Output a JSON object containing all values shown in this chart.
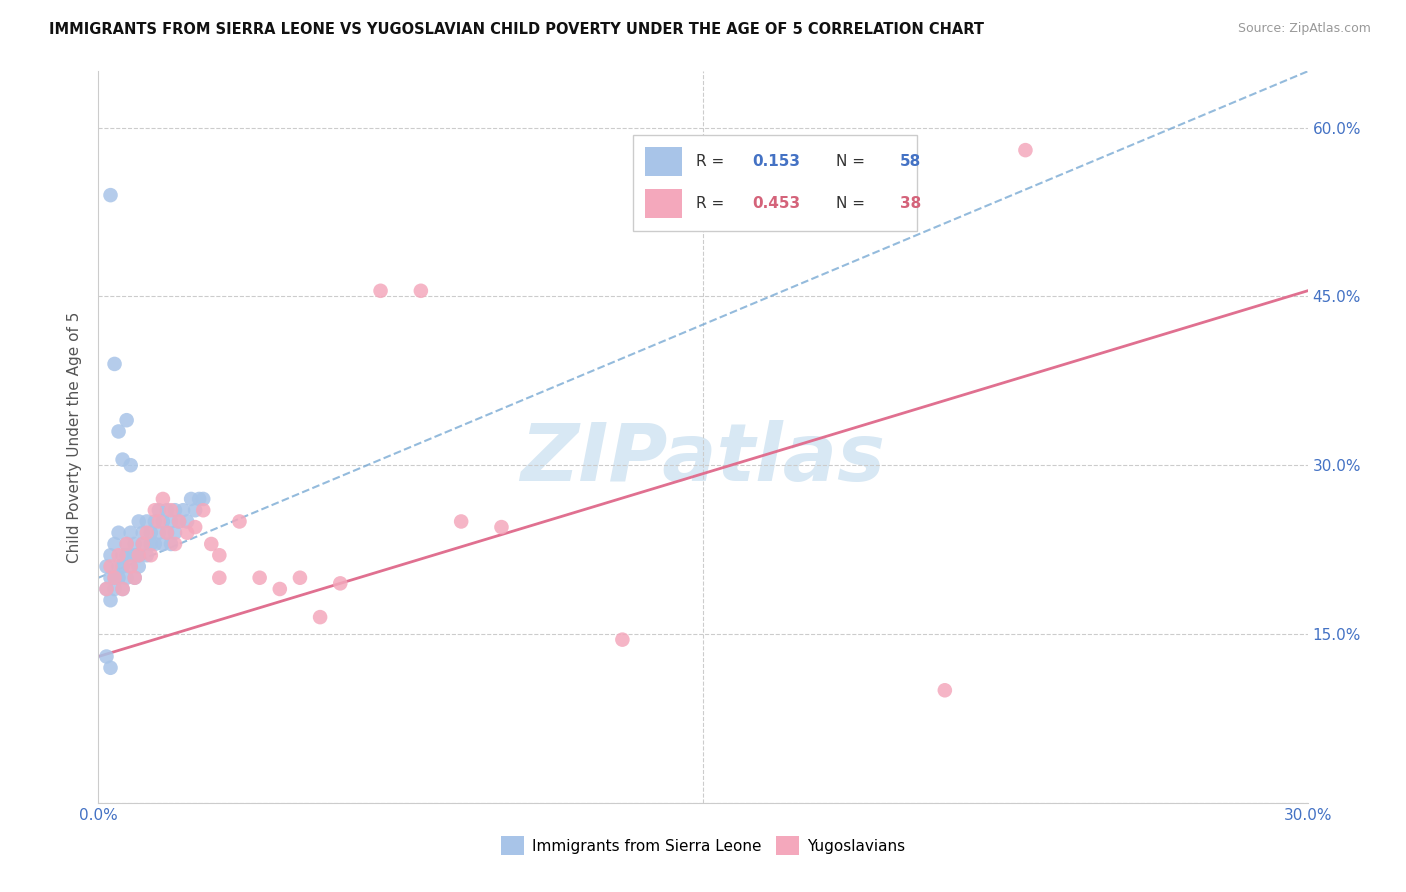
{
  "title": "IMMIGRANTS FROM SIERRA LEONE VS YUGOSLAVIAN CHILD POVERTY UNDER THE AGE OF 5 CORRELATION CHART",
  "source": "Source: ZipAtlas.com",
  "ylabel": "Child Poverty Under the Age of 5",
  "xmin": 0.0,
  "xmax": 0.3,
  "ymin": 0.0,
  "ymax": 0.65,
  "yticks": [
    0.0,
    0.15,
    0.3,
    0.45,
    0.6
  ],
  "ytick_labels": [
    "",
    "15.0%",
    "30.0%",
    "45.0%",
    "60.0%"
  ],
  "xtick_vals": [
    0.0,
    0.3
  ],
  "xtick_labels": [
    "0.0%",
    "30.0%"
  ],
  "legend1_label": "Immigrants from Sierra Leone",
  "legend2_label": "Yugoslavians",
  "R1": "0.153",
  "N1": "58",
  "R2": "0.453",
  "N2": "38",
  "color_blue": "#a8c4e8",
  "color_pink": "#f4a8bc",
  "color_blue_text": "#4472c4",
  "color_pink_text": "#d4637a",
  "line_blue_color": "#7aaad4",
  "line_pink_color": "#e07090",
  "watermark": "ZIPatlas",
  "watermark_color": "#d8e8f4",
  "line_blue_y0": 0.2,
  "line_blue_y1": 0.65,
  "line_pink_y0": 0.13,
  "line_pink_y1": 0.455,
  "sierra_leone_x": [
    0.002,
    0.002,
    0.003,
    0.003,
    0.003,
    0.004,
    0.004,
    0.004,
    0.005,
    0.005,
    0.005,
    0.006,
    0.006,
    0.006,
    0.007,
    0.007,
    0.007,
    0.008,
    0.008,
    0.009,
    0.009,
    0.009,
    0.01,
    0.01,
    0.01,
    0.011,
    0.011,
    0.012,
    0.012,
    0.013,
    0.013,
    0.014,
    0.014,
    0.015,
    0.015,
    0.016,
    0.016,
    0.017,
    0.017,
    0.018,
    0.018,
    0.019,
    0.019,
    0.02,
    0.021,
    0.022,
    0.023,
    0.024,
    0.025,
    0.026,
    0.003,
    0.004,
    0.005,
    0.006,
    0.007,
    0.008,
    0.002,
    0.003
  ],
  "sierra_leone_y": [
    0.21,
    0.19,
    0.22,
    0.2,
    0.18,
    0.23,
    0.2,
    0.19,
    0.24,
    0.21,
    0.2,
    0.22,
    0.21,
    0.19,
    0.23,
    0.22,
    0.2,
    0.24,
    0.21,
    0.23,
    0.22,
    0.2,
    0.25,
    0.22,
    0.21,
    0.23,
    0.24,
    0.22,
    0.25,
    0.23,
    0.24,
    0.23,
    0.25,
    0.24,
    0.26,
    0.23,
    0.25,
    0.24,
    0.26,
    0.25,
    0.23,
    0.24,
    0.26,
    0.25,
    0.26,
    0.25,
    0.27,
    0.26,
    0.27,
    0.27,
    0.54,
    0.39,
    0.33,
    0.305,
    0.34,
    0.3,
    0.13,
    0.12
  ],
  "yugoslavian_x": [
    0.002,
    0.003,
    0.004,
    0.005,
    0.006,
    0.007,
    0.008,
    0.009,
    0.01,
    0.011,
    0.012,
    0.013,
    0.014,
    0.015,
    0.016,
    0.017,
    0.018,
    0.019,
    0.02,
    0.022,
    0.024,
    0.026,
    0.028,
    0.03,
    0.035,
    0.04,
    0.05,
    0.06,
    0.07,
    0.08,
    0.09,
    0.1,
    0.13,
    0.21,
    0.23,
    0.03,
    0.045,
    0.055
  ],
  "yugoslavian_y": [
    0.19,
    0.21,
    0.2,
    0.22,
    0.19,
    0.23,
    0.21,
    0.2,
    0.22,
    0.23,
    0.24,
    0.22,
    0.26,
    0.25,
    0.27,
    0.24,
    0.26,
    0.23,
    0.25,
    0.24,
    0.245,
    0.26,
    0.23,
    0.22,
    0.25,
    0.2,
    0.2,
    0.195,
    0.455,
    0.455,
    0.25,
    0.245,
    0.145,
    0.1,
    0.58,
    0.2,
    0.19,
    0.165
  ]
}
